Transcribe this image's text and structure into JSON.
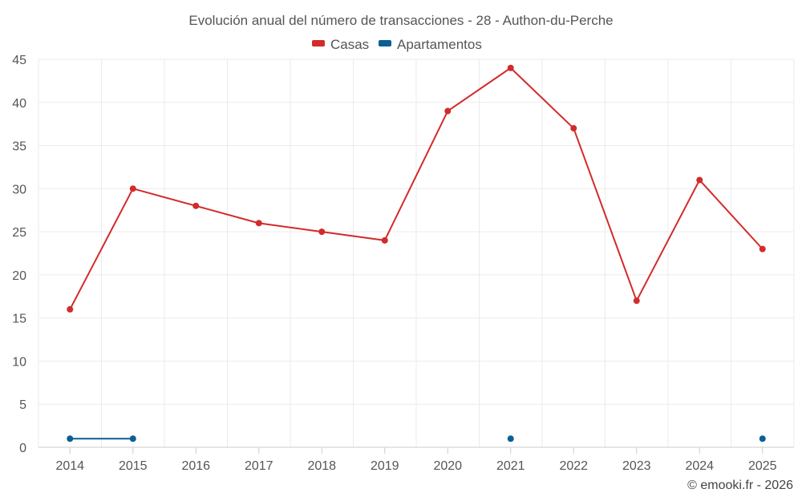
{
  "chart_data": {
    "type": "line",
    "title": "Evolución anual del número de transacciones - 28 - Authon-du-Perche",
    "xlabel": "",
    "ylabel": "",
    "categories": [
      "2014",
      "2015",
      "2016",
      "2017",
      "2018",
      "2019",
      "2020",
      "2021",
      "2022",
      "2023",
      "2024",
      "2025"
    ],
    "ylim": [
      0,
      45
    ],
    "yticks": [
      "0",
      "5",
      "10",
      "15",
      "20",
      "25",
      "30",
      "35",
      "40",
      "45"
    ],
    "grid": true,
    "legend_position": "top-center",
    "series": [
      {
        "name": "Casas",
        "color": "#d32a2a",
        "values": [
          16,
          30,
          28,
          26,
          25,
          24,
          39,
          44,
          37,
          17,
          31,
          23
        ]
      },
      {
        "name": "Apartamentos",
        "color": "#0a5f95",
        "values": [
          1,
          1,
          null,
          null,
          null,
          null,
          null,
          1,
          null,
          null,
          null,
          1
        ]
      }
    ],
    "credit": "© emooki.fr - 2026"
  }
}
